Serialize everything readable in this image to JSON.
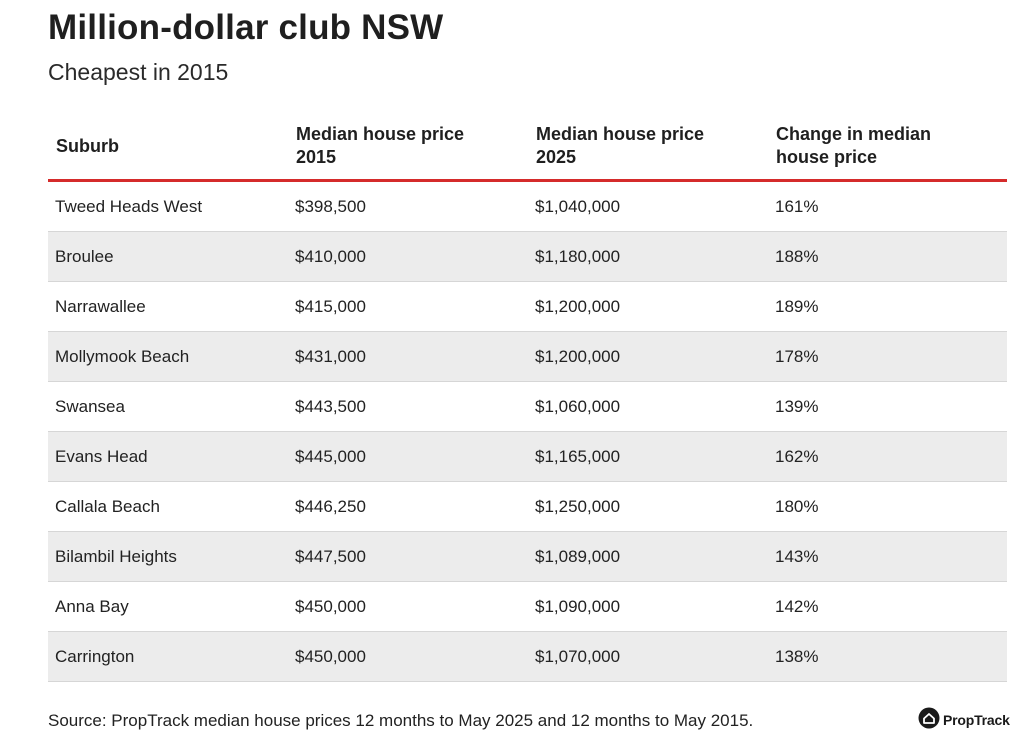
{
  "title": "Million-dollar club NSW",
  "subtitle": "Cheapest in 2015",
  "chart_data": {
    "type": "table",
    "title": "Million-dollar club NSW",
    "subtitle": "Cheapest in 2015",
    "columns": [
      "Suburb",
      "Median house price 2015",
      "Median house price 2025",
      "Change in median house price"
    ],
    "rows": [
      [
        "Tweed Heads West",
        "$398,500",
        "$1,040,000",
        "161%"
      ],
      [
        "Broulee",
        "$410,000",
        "$1,180,000",
        "188%"
      ],
      [
        "Narrawallee",
        "$415,000",
        "$1,200,000",
        "189%"
      ],
      [
        "Mollymook Beach",
        "$431,000",
        "$1,200,000",
        "178%"
      ],
      [
        "Swansea",
        "$443,500",
        "$1,060,000",
        "139%"
      ],
      [
        "Evans Head",
        "$445,000",
        "$1,165,000",
        "162%"
      ],
      [
        "Callala Beach",
        "$446,250",
        "$1,250,000",
        "180%"
      ],
      [
        "Bilambil Heights",
        "$447,500",
        "$1,089,000",
        "143%"
      ],
      [
        "Anna Bay",
        "$450,000",
        "$1,090,000",
        "142%"
      ],
      [
        "Carrington",
        "$450,000",
        "$1,070,000",
        "138%"
      ]
    ]
  },
  "source": "Source: PropTrack median house prices 12 months to May 2025 and 12 months to May 2015.",
  "logo": {
    "text": "PropTrack",
    "icon": "house-icon"
  },
  "colors": {
    "header_rule": "#d52b2b",
    "stripe": "#ececec"
  }
}
